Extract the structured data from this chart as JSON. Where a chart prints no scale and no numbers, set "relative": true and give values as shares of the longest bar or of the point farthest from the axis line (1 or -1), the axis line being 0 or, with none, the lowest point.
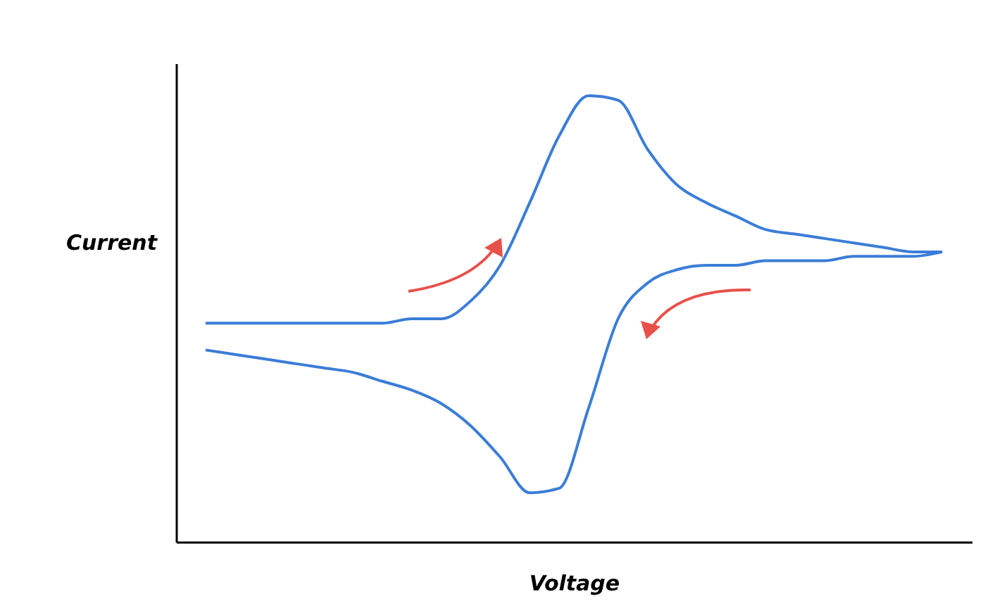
{
  "chart_data": {
    "type": "line",
    "relative": true,
    "xlabel": "Voltage",
    "ylabel": "Current",
    "categories": [
      null,
      null,
      null,
      null,
      null,
      null,
      null,
      null,
      null,
      null,
      null,
      null,
      null,
      null,
      null,
      null,
      null,
      null,
      null,
      null,
      null,
      null,
      null,
      null,
      null,
      null
    ],
    "series": [
      {
        "color": "#3b7dd8",
        "values": [
          0.49,
          0.49,
          0.49,
          0.49,
          0.49,
          0.49,
          0.49,
          0.5,
          0.5,
          0.54,
          0.62,
          0.76,
          0.91,
          1.0,
          0.99,
          0.88,
          0.8,
          0.76,
          0.73,
          0.7,
          0.69,
          0.68,
          0.67,
          0.66,
          0.65,
          0.65
        ]
      },
      {
        "color": "#3b7dd8",
        "values": [
          0.43,
          0.42,
          0.41,
          0.4,
          0.39,
          0.38,
          0.36,
          0.34,
          0.31,
          0.26,
          0.19,
          0.11,
          0.12,
          0.3,
          0.5,
          0.58,
          0.61,
          0.62,
          0.62,
          0.63,
          0.63,
          0.63,
          0.64,
          0.64,
          0.64,
          0.65
        ]
      }
    ]
  }
}
